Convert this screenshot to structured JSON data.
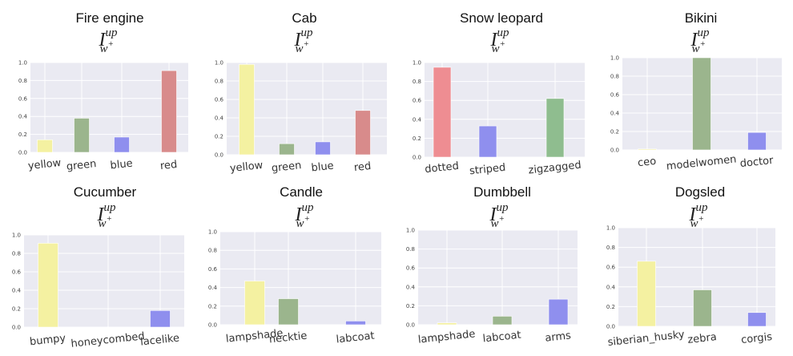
{
  "chart_data": [
    {
      "type": "bar",
      "title": "Fire engine",
      "ylabel_symbol": {
        "base": "I",
        "sup": "up",
        "sub": "w",
        "subsup": "+"
      },
      "categories": [
        "yellow",
        "green",
        "blue",
        "red"
      ],
      "values": [
        0.14,
        0.38,
        0.17,
        0.91
      ],
      "colors": [
        "#f4f1a1",
        "#9bb58d",
        "#8f8fee",
        "#d88b8b"
      ],
      "ylim": [
        0,
        1.0
      ],
      "yticks": [
        "0.0",
        "0.2",
        "0.4",
        "0.6",
        "0.8",
        "1.0"
      ],
      "grid": true
    },
    {
      "type": "bar",
      "title": "Cab",
      "ylabel_symbol": {
        "base": "I",
        "sup": "up",
        "sub": "w",
        "subsup": "+"
      },
      "categories": [
        "yellow",
        "green",
        "blue",
        "red"
      ],
      "values": [
        0.98,
        0.12,
        0.14,
        0.48
      ],
      "colors": [
        "#f4f1a1",
        "#9bb58d",
        "#8f8fee",
        "#d88b8b"
      ],
      "ylim": [
        0,
        1.0
      ],
      "yticks": [
        "0.0",
        "0.2",
        "0.4",
        "0.6",
        "0.8",
        "1.0"
      ],
      "grid": true
    },
    {
      "type": "bar",
      "title": "Snow leopard",
      "ylabel_symbol": {
        "base": "I",
        "sup": "up",
        "sub": "w",
        "subsup": "+"
      },
      "categories": [
        "dotted",
        "striped",
        "zigzagged"
      ],
      "values": [
        0.95,
        0.33,
        0.62
      ],
      "colors": [
        "#ee8d92",
        "#8f8fee",
        "#8fbd8f"
      ],
      "ylim": [
        0,
        1.0
      ],
      "yticks": [
        "0.0",
        "0.2",
        "0.4",
        "0.6",
        "0.8",
        "1.0"
      ],
      "grid": true
    },
    {
      "type": "bar",
      "title": "Bikini",
      "ylabel_symbol": {
        "base": "I",
        "sup": "up",
        "sub": "w",
        "subsup": "+"
      },
      "categories": [
        "ceo",
        "modelwomen",
        "doctor"
      ],
      "values": [
        0.01,
        1.0,
        0.19
      ],
      "colors": [
        "#f4f1a1",
        "#9bb58d",
        "#8f8fee"
      ],
      "ylim": [
        0,
        1.0
      ],
      "yticks": [
        "0.0",
        "0.2",
        "0.4",
        "0.6",
        "0.8",
        "1.0"
      ],
      "grid": true
    },
    {
      "type": "bar",
      "title": "Cucumber",
      "ylabel_symbol": {
        "base": "I",
        "sup": "up",
        "sub": "w",
        "subsup": "+"
      },
      "categories": [
        "bumpy",
        "honeycombed",
        "lacelike"
      ],
      "values": [
        0.91,
        0.0,
        0.18
      ],
      "colors": [
        "#f4f1a1",
        "#9bb58d",
        "#8f8fee"
      ],
      "ylim": [
        0,
        1.0
      ],
      "yticks": [
        "0.0",
        "0.2",
        "0.4",
        "0.6",
        "0.8",
        "1.0"
      ],
      "grid": true
    },
    {
      "type": "bar",
      "title": "Candle",
      "ylabel_symbol": {
        "base": "I",
        "sup": "up",
        "sub": "w",
        "subsup": "+"
      },
      "categories": [
        "lampshade",
        "necktie",
        "labcoat"
      ],
      "values": [
        0.47,
        0.28,
        0.04
      ],
      "colors": [
        "#f4f1a1",
        "#9bb58d",
        "#8f8fee"
      ],
      "ylim": [
        0,
        1.0
      ],
      "yticks": [
        "0.0",
        "0.2",
        "0.4",
        "0.6",
        "0.8",
        "1.0"
      ],
      "grid": true
    },
    {
      "type": "bar",
      "title": "Dumbbell",
      "ylabel_symbol": {
        "base": "I",
        "sup": "up",
        "sub": "w",
        "subsup": "+"
      },
      "categories": [
        "lampshade",
        "labcoat",
        "arms"
      ],
      "values": [
        0.02,
        0.09,
        0.27
      ],
      "colors": [
        "#f4f1a1",
        "#9bb58d",
        "#8f8fee"
      ],
      "ylim": [
        0,
        1.0
      ],
      "yticks": [
        "0.0",
        "0.2",
        "0.4",
        "0.6",
        "0.8",
        "1.0"
      ],
      "grid": true
    },
    {
      "type": "bar",
      "title": "Dogsled",
      "ylabel_symbol": {
        "base": "I",
        "sup": "up",
        "sub": "w",
        "subsup": "+"
      },
      "categories": [
        "siberian_husky",
        "zebra",
        "corgis"
      ],
      "values": [
        0.66,
        0.37,
        0.14
      ],
      "colors": [
        "#f4f1a1",
        "#9bb58d",
        "#8f8fee"
      ],
      "ylim": [
        0,
        1.0
      ],
      "yticks": [
        "0.0",
        "0.2",
        "0.4",
        "0.6",
        "0.8",
        "1.0"
      ],
      "grid": true
    }
  ]
}
